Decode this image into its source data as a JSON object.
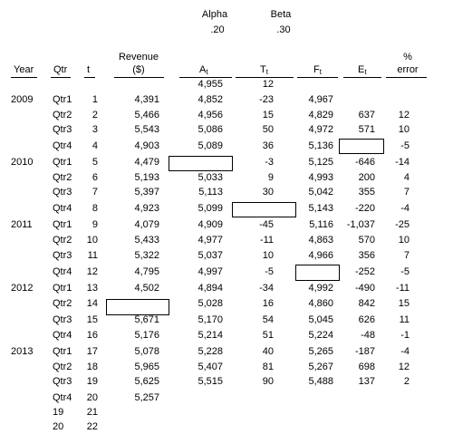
{
  "params": {
    "alpha_label": "Alpha",
    "alpha_value": ".20",
    "beta_label": "Beta",
    "beta_value": ".30"
  },
  "headers": {
    "year": "Year",
    "qtr": "Qtr",
    "t": "t",
    "revenue_line1": "Revenue",
    "revenue_line2": "($)",
    "at": "A",
    "at_sub": "t",
    "tt": "T",
    "tt_sub": "t",
    "ft": "F",
    "ft_sub": "t",
    "et": "E",
    "et_sub": "t",
    "err_line1": "%",
    "err_line2": "error"
  },
  "initial_row": {
    "at": "4,955",
    "tt": "12"
  },
  "rows": [
    {
      "year": "2009",
      "qtr": "Qtr1",
      "t": "1",
      "rev": "4,391",
      "at": "4,852",
      "tt": "-23",
      "ft": "4,967",
      "et": "",
      "err": ""
    },
    {
      "year": "",
      "qtr": "Qtr2",
      "t": "2",
      "rev": "5,466",
      "at": "4,956",
      "tt": "15",
      "ft": "4,829",
      "et": "637",
      "err": "12"
    },
    {
      "year": "",
      "qtr": "Qtr3",
      "t": "3",
      "rev": "5,543",
      "at": "5,086",
      "tt": "50",
      "ft": "4,972",
      "et": "571",
      "err": "10"
    },
    {
      "year": "",
      "qtr": "Qtr4",
      "t": "4",
      "rev": "4,903",
      "at": "5,089",
      "tt": "36",
      "ft": "5,136",
      "et": "",
      "err": "-5"
    },
    {
      "year": "2010",
      "qtr": "Qtr1",
      "t": "5",
      "rev": "4,479",
      "at": "",
      "tt": "-3",
      "ft": "5,125",
      "et": "-646",
      "err": "-14"
    },
    {
      "year": "",
      "qtr": "Qtr2",
      "t": "6",
      "rev": "5,193",
      "at": "5,033",
      "tt": "9",
      "ft": "4,993",
      "et": "200",
      "err": "4"
    },
    {
      "year": "",
      "qtr": "Qtr3",
      "t": "7",
      "rev": "5,397",
      "at": "5,113",
      "tt": "30",
      "ft": "5,042",
      "et": "355",
      "err": "7"
    },
    {
      "year": "",
      "qtr": "Qtr4",
      "t": "8",
      "rev": "4,923",
      "at": "5,099",
      "tt": "",
      "ft": "5,143",
      "et": "-220",
      "err": "-4"
    },
    {
      "year": "2011",
      "qtr": "Qtr1",
      "t": "9",
      "rev": "4,079",
      "at": "4,909",
      "tt": "-45",
      "ft": "5,116",
      "et": "-1,037",
      "err": "-25"
    },
    {
      "year": "",
      "qtr": "Qtr2",
      "t": "10",
      "rev": "5,433",
      "at": "4,977",
      "tt": "-11",
      "ft": "4,863",
      "et": "570",
      "err": "10"
    },
    {
      "year": "",
      "qtr": "Qtr3",
      "t": "11",
      "rev": "5,322",
      "at": "5,037",
      "tt": "10",
      "ft": "4,966",
      "et": "356",
      "err": "7"
    },
    {
      "year": "",
      "qtr": "Qtr4",
      "t": "12",
      "rev": "4,795",
      "at": "4,997",
      "tt": "-5",
      "ft": "",
      "et": "-252",
      "err": "-5"
    },
    {
      "year": "2012",
      "qtr": "Qtr1",
      "t": "13",
      "rev": "4,502",
      "at": "4,894",
      "tt": "-34",
      "ft": "4,992",
      "et": "-490",
      "err": "-11"
    },
    {
      "year": "",
      "qtr": "Qtr2",
      "t": "14",
      "rev": "",
      "at": "5,028",
      "tt": "16",
      "ft": "4,860",
      "et": "842",
      "err": "15"
    },
    {
      "year": "",
      "qtr": "Qtr3",
      "t": "15",
      "rev": "5,671",
      "at": "5,170",
      "tt": "54",
      "ft": "5,045",
      "et": "626",
      "err": "11"
    },
    {
      "year": "",
      "qtr": "Qtr4",
      "t": "16",
      "rev": "5,176",
      "at": "5,214",
      "tt": "51",
      "ft": "5,224",
      "et": "-48",
      "err": "-1"
    },
    {
      "year": "2013",
      "qtr": "Qtr1",
      "t": "17",
      "rev": "5,078",
      "at": "5,228",
      "tt": "40",
      "ft": "5,265",
      "et": "-187",
      "err": "-4"
    },
    {
      "year": "",
      "qtr": "Qtr2",
      "t": "18",
      "rev": "5,965",
      "at": "5,407",
      "tt": "81",
      "ft": "5,267",
      "et": "698",
      "err": "12"
    },
    {
      "year": "",
      "qtr": "Qtr3",
      "t": "19",
      "rev": "5,625",
      "at": "5,515",
      "tt": "90",
      "ft": "5,488",
      "et": "137",
      "err": "2"
    },
    {
      "year": "",
      "qtr": "Qtr4",
      "t": "20",
      "rev": "5,257",
      "at": "",
      "tt": "",
      "ft": "",
      "et": "",
      "err": ""
    },
    {
      "year": "",
      "qtr": "19",
      "t": "21",
      "rev": "",
      "at": "",
      "tt": "",
      "ft": "",
      "et": "",
      "err": ""
    },
    {
      "year": "",
      "qtr": "20",
      "t": "22",
      "rev": "",
      "at": "",
      "tt": "",
      "ft": "",
      "et": "",
      "err": ""
    }
  ]
}
